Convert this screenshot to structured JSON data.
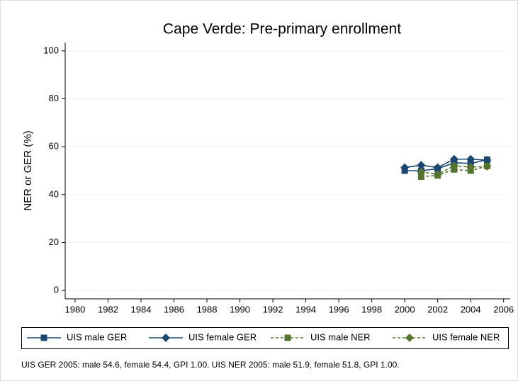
{
  "chart_data": {
    "type": "line",
    "title": "Cape Verde: Pre-primary enrollment",
    "y_label": "NER or GER (%)",
    "note": "UIS GER 2005: male 54.6, female 54.4, GPI 1.00. UIS NER 2005: male 51.9, female 51.8, GPI 1.00.",
    "x": [
      2000,
      2001,
      2002,
      2003,
      2004,
      2005
    ],
    "series": [
      {
        "name": "UIS male GER",
        "color": "#1a476f",
        "marker": "square",
        "dash": false,
        "values": [
          50.0,
          50.0,
          50.8,
          53.3,
          53.0,
          54.6
        ]
      },
      {
        "name": "UIS female GER",
        "color": "#1a476f",
        "marker": "diamond",
        "dash": false,
        "values": [
          51.3,
          52.3,
          51.3,
          54.8,
          54.8,
          54.4
        ]
      },
      {
        "name": "UIS male NER",
        "color": "#55752f",
        "marker": "square",
        "dash": true,
        "values": [
          null,
          47.5,
          48.0,
          50.5,
          50.0,
          51.9
        ]
      },
      {
        "name": "UIS female NER",
        "color": "#55752f",
        "marker": "diamond",
        "dash": true,
        "values": [
          null,
          49.5,
          48.5,
          52.0,
          51.5,
          51.8
        ]
      }
    ],
    "xlim": [
      1979.4,
      2006.4
    ],
    "xticks": [
      1980,
      1982,
      1984,
      1986,
      1988,
      1990,
      1992,
      1994,
      1996,
      1998,
      2000,
      2002,
      2004,
      2006
    ],
    "ylim": [
      -3.5,
      103.5
    ],
    "yticks": [
      0,
      20,
      40,
      60,
      80,
      100
    ],
    "grid": true
  }
}
